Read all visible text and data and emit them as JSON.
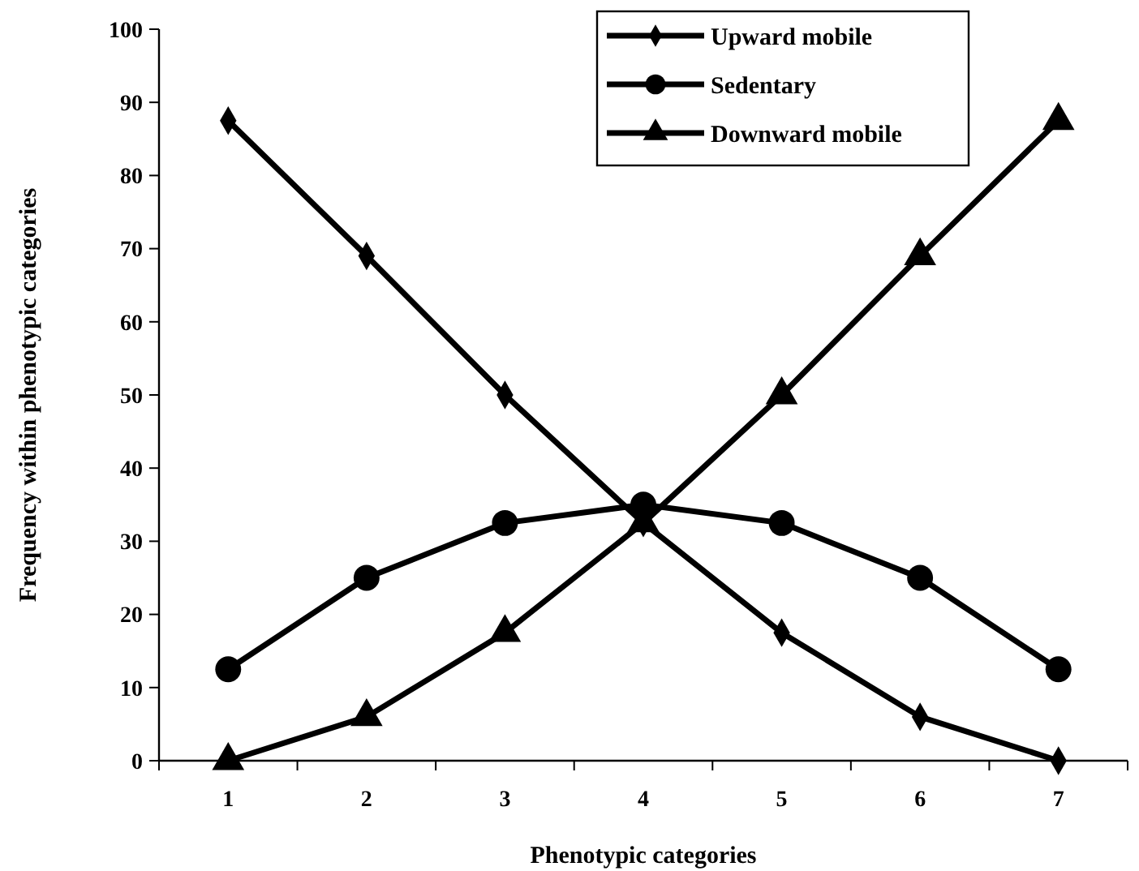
{
  "chart_data": {
    "type": "line",
    "xlabel": "Phenotypic categories",
    "ylabel": "Frequency within phenotypic categories",
    "categories": [
      "1",
      "2",
      "3",
      "4",
      "5",
      "6",
      "7"
    ],
    "ylim": [
      0,
      100
    ],
    "yticks": [
      0,
      10,
      20,
      30,
      40,
      50,
      60,
      70,
      80,
      90,
      100
    ],
    "grid": false,
    "legend": "top right",
    "line_style": "solid",
    "series": [
      {
        "name": "Upward mobile",
        "color": "#000000",
        "marker": "diamond",
        "values": [
          87.5,
          69,
          50,
          32.5,
          17.5,
          6,
          0
        ]
      },
      {
        "name": "Sedentary",
        "color": "#000000",
        "marker": "circle",
        "values": [
          12.5,
          25,
          32.5,
          35,
          32.5,
          25,
          12.5
        ]
      },
      {
        "name": "Downward mobile",
        "color": "#000000",
        "marker": "triangle",
        "values": [
          0,
          6,
          17.5,
          32.5,
          50,
          69,
          87.5
        ]
      }
    ]
  }
}
